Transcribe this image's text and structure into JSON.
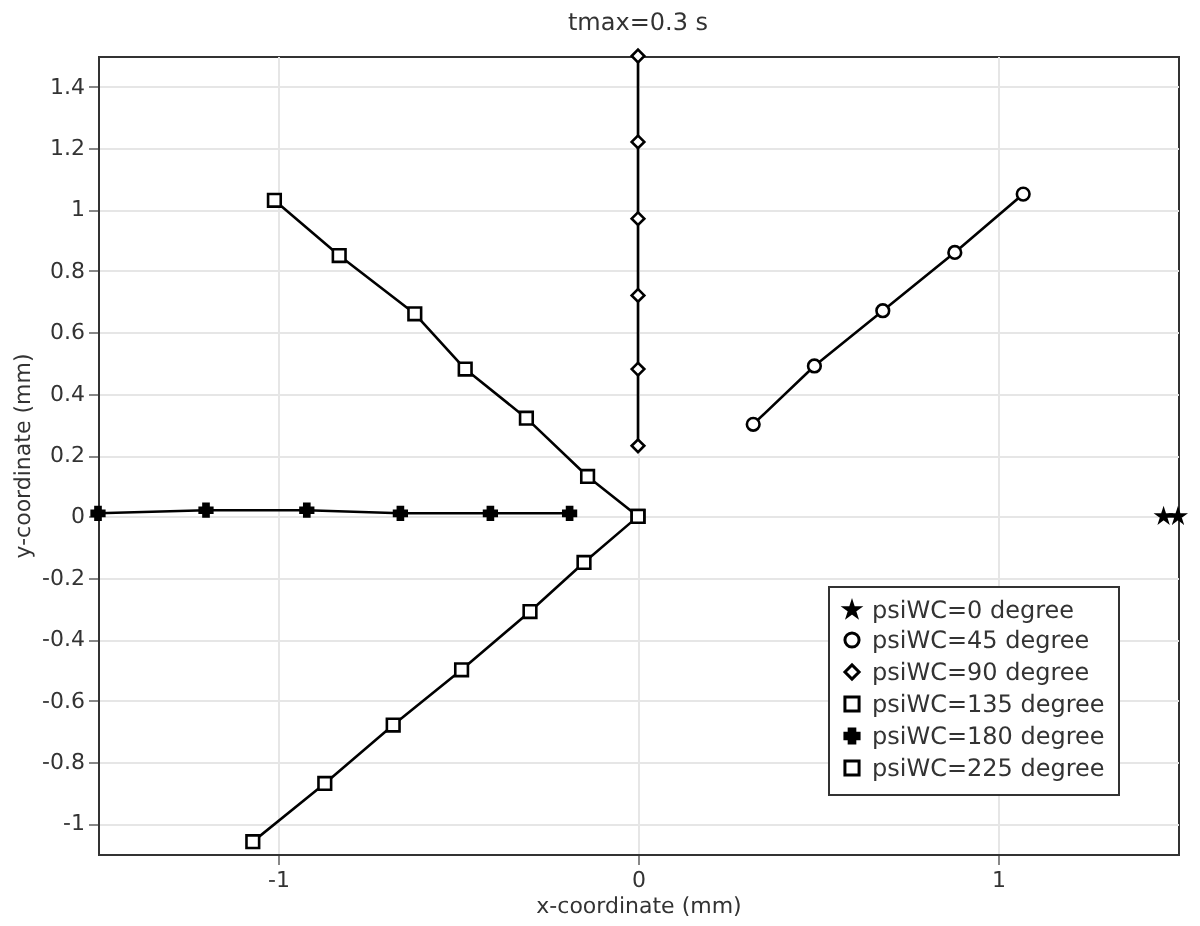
{
  "chart_data": {
    "type": "line",
    "title": "tmax=0.3 s",
    "xlabel": "x-coordinate (mm)",
    "ylabel": "y-coordinate (mm)",
    "xlim": [
      -1.5,
      1.5
    ],
    "ylim": [
      -1.1,
      1.5
    ],
    "xticks": [
      -1,
      0,
      1
    ],
    "yticks": [
      -1,
      -0.8,
      -0.6,
      -0.4,
      -0.2,
      0,
      0.2,
      0.4,
      0.6,
      0.8,
      1,
      1.2,
      1.4
    ],
    "grid": true,
    "legend": "bottom right",
    "line_style": "solid",
    "series": [
      {
        "name": "psiWC=0 degree",
        "color": "#000000",
        "marker": "star",
        "x": [
          1.46,
          1.5
        ],
        "values": [
          0,
          0
        ]
      },
      {
        "name": "psiWC=45 degree",
        "color": "#000000",
        "marker": "circle",
        "x": [
          0.32,
          0.49,
          0.68,
          0.88,
          1.07
        ],
        "values": [
          0.3,
          0.49,
          0.67,
          0.86,
          1.05
        ]
      },
      {
        "name": "psiWC=90 degree",
        "color": "#000000",
        "marker": "diamond",
        "x": [
          0,
          0,
          0,
          0,
          0,
          0
        ],
        "values": [
          0.23,
          0.48,
          0.72,
          0.97,
          1.22,
          1.5
        ]
      },
      {
        "name": "psiWC=135 degree",
        "color": "#000000",
        "marker": "square",
        "x": [
          0,
          -0.14,
          -0.31,
          -0.48,
          -0.62,
          -0.83,
          -1.01
        ],
        "values": [
          0,
          0.13,
          0.32,
          0.48,
          0.66,
          0.85,
          1.03
        ]
      },
      {
        "name": "psiWC=180 degree",
        "color": "#000000",
        "marker": "cross",
        "x": [
          -0.19,
          -0.41,
          -0.66,
          -0.92,
          -1.2,
          -1.5
        ],
        "values": [
          0.01,
          0.01,
          0.01,
          0.02,
          0.02,
          0.01
        ]
      },
      {
        "name": "psiWC=225 degree",
        "color": "#000000",
        "marker": "square",
        "x": [
          0,
          -0.15,
          -0.3,
          -0.49,
          -0.68,
          -0.87,
          -1.07
        ],
        "values": [
          0,
          -0.15,
          -0.31,
          -0.5,
          -0.68,
          -0.87,
          -1.06
        ]
      }
    ]
  }
}
